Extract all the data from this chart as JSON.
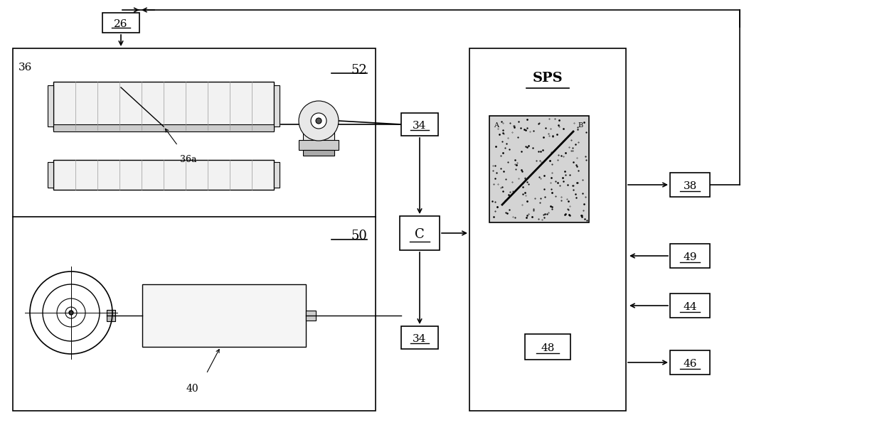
{
  "bg_color": "#ffffff",
  "line_color": "#000000",
  "label_26": "26",
  "label_52": "52",
  "label_50": "50",
  "label_36": "36",
  "label_36a": "36a",
  "label_34_top": "34",
  "label_34_bottom": "34",
  "label_C": "C",
  "label_SPS": "SPS",
  "label_38": "38",
  "label_49": "49",
  "label_44": "44",
  "label_46": "46",
  "label_48": "48",
  "label_40": "40",
  "label_A": "A",
  "label_B": "B",
  "fig_width": 12.4,
  "fig_height": 5.98
}
